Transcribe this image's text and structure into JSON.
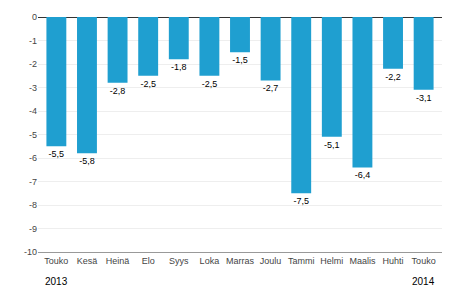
{
  "chart_data": {
    "type": "bar",
    "categories": [
      "Touko",
      "Kesä",
      "Heinä",
      "Elo",
      "Syys",
      "Loka",
      "Marras",
      "Joulu",
      "Tammi",
      "Helmi",
      "Maalis",
      "Huhti",
      "Touko"
    ],
    "values": [
      -5.5,
      -5.8,
      -2.8,
      -2.5,
      -1.8,
      -2.5,
      -1.5,
      -2.7,
      -7.5,
      -5.1,
      -6.4,
      -2.2,
      -3.1
    ],
    "value_labels": [
      "-5,5",
      "-5,8",
      "-2,8",
      "-2,5",
      "-1,8",
      "-2,5",
      "-1,5",
      "-2,7",
      "-7,5",
      "-5,1",
      "-6,4",
      "-2,2",
      "-3,1"
    ],
    "data_labels": true,
    "color": "#1f9fd0",
    "ylim": [
      -10,
      0
    ],
    "yticks": [
      0,
      -1,
      -2,
      -3,
      -4,
      -5,
      -6,
      -7,
      -8,
      -9,
      -10
    ],
    "grid": true,
    "annotations": [
      {
        "text": "2013",
        "index": 0
      },
      {
        "text": "2014",
        "index": 12
      }
    ]
  }
}
